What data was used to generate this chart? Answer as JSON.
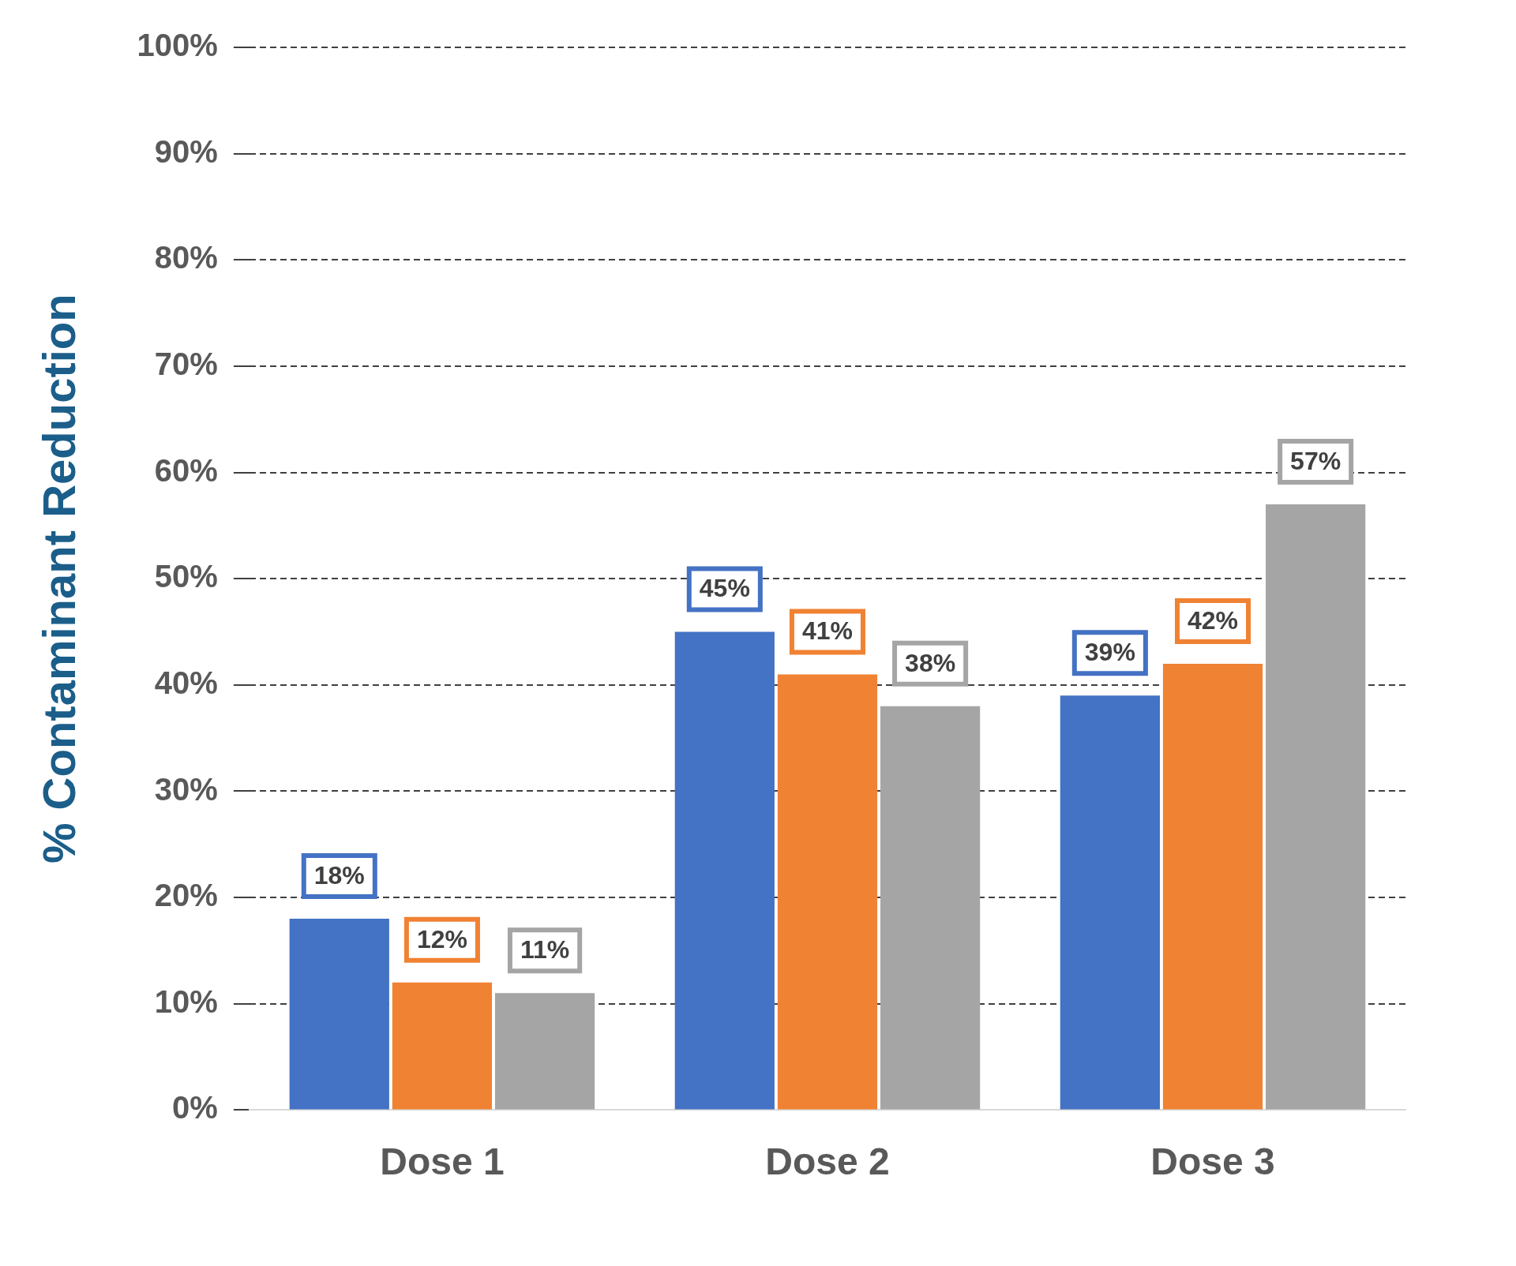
{
  "chart_data": {
    "type": "bar",
    "ylabel": "% Contaminant Reduction",
    "categories": [
      "Dose 1",
      "Dose 2",
      "Dose 3"
    ],
    "series": [
      {
        "color": "#4472c4",
        "values": [
          18,
          45,
          39
        ],
        "value_labels": [
          "18%",
          "45%",
          "39%"
        ]
      },
      {
        "color": "#f08233",
        "values": [
          12,
          41,
          42
        ],
        "value_labels": [
          "12%",
          "41%",
          "42%"
        ]
      },
      {
        "color": "#a5a5a5",
        "values": [
          11,
          38,
          57
        ],
        "value_labels": [
          "11%",
          "38%",
          "57%"
        ]
      }
    ],
    "ylim": [
      0,
      100
    ],
    "yticks": [
      {
        "value": 0,
        "label": "0%"
      },
      {
        "value": 10,
        "label": "10%"
      },
      {
        "value": 20,
        "label": "20%"
      },
      {
        "value": 30,
        "label": "30%"
      },
      {
        "value": 40,
        "label": "40%"
      },
      {
        "value": 50,
        "label": "50%"
      },
      {
        "value": 60,
        "label": "60%"
      },
      {
        "value": 70,
        "label": "70%"
      },
      {
        "value": 80,
        "label": "80%"
      },
      {
        "value": 90,
        "label": "90%"
      },
      {
        "value": 100,
        "label": "100%"
      }
    ],
    "grid": "y"
  }
}
